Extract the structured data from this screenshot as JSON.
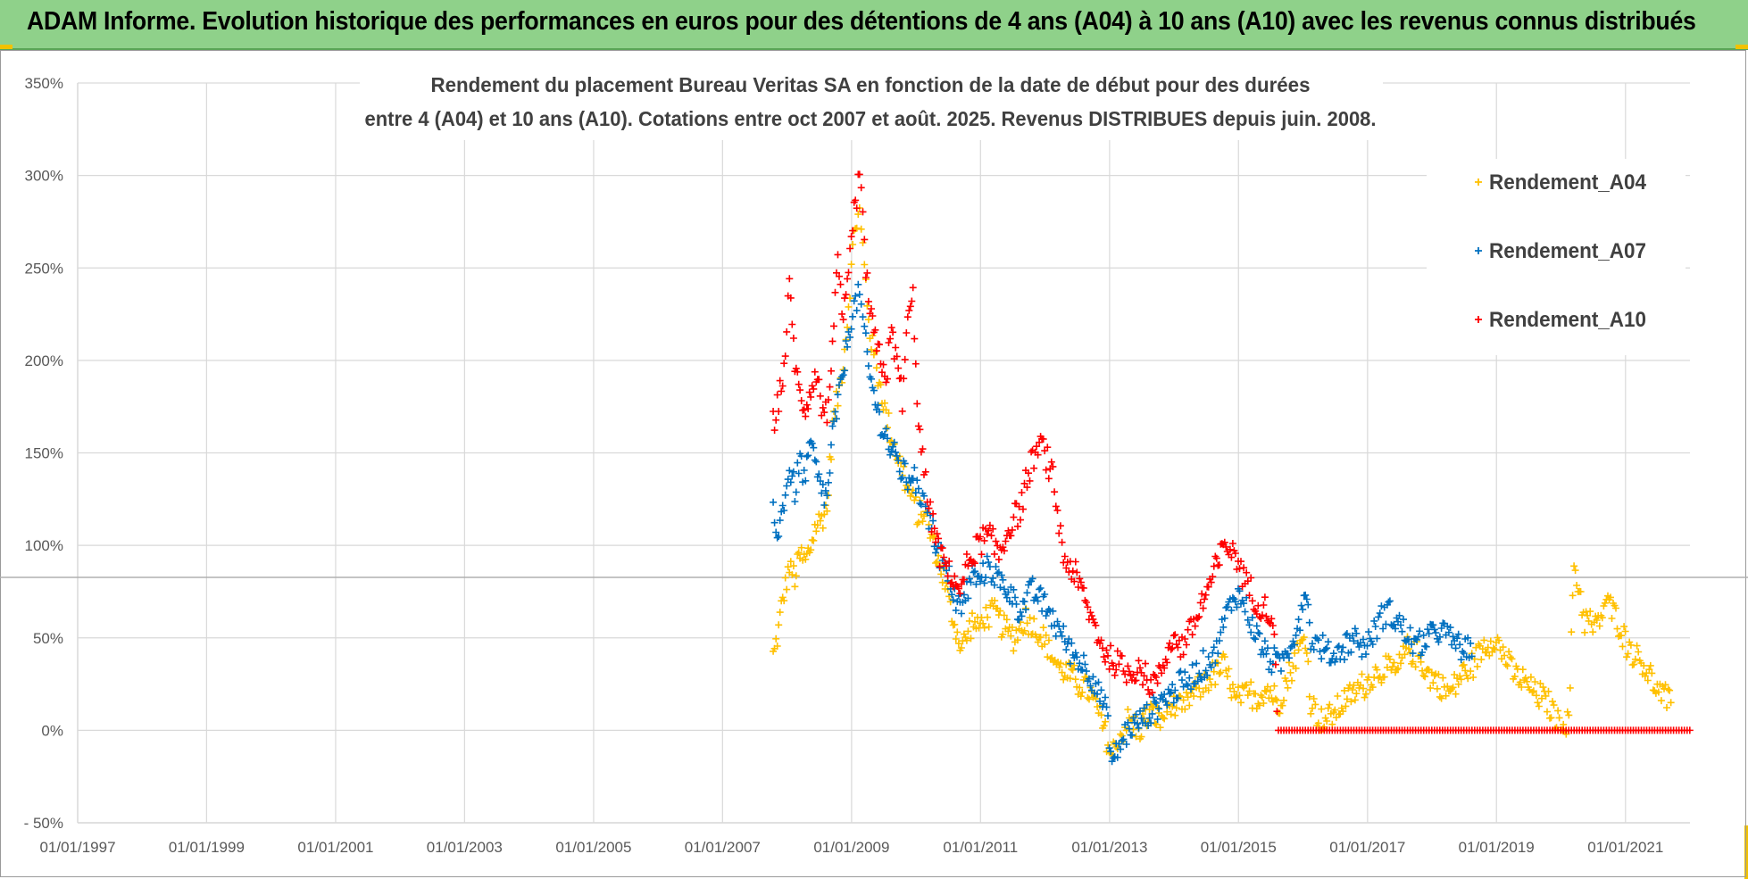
{
  "banner": {
    "title": "ADAM Informe. Evolution historique des performances en euros pour des détentions de 4 ans (A04) à 10 ans (A10) avec les revenus connus distribués"
  },
  "colors": {
    "banner_bg": "#8fd18a",
    "A04": "#ffc000",
    "A07": "#0070c0",
    "A10": "#ff0000",
    "grid": "#d9d9d9"
  },
  "chart_data": {
    "type": "scatter",
    "title_lines": [
      "Rendement du placement Bureau Veritas SA en fonction de la date de début pour des durées",
      "entre 4 (A04) et 10 ans (A10). Cotations entre oct 2007 et août. 2025. Revenus DISTRIBUES depuis juin. 2008."
    ],
    "x_axis": {
      "type": "date",
      "min": "1997-01-01",
      "max": "2022-01-01",
      "tick_labels": [
        "01/01/1997",
        "01/01/1999",
        "01/01/2001",
        "01/01/2003",
        "01/01/2005",
        "01/01/2007",
        "01/01/2009",
        "01/01/2011",
        "01/01/2013",
        "01/01/2015",
        "01/01/2017",
        "01/01/2019",
        "01/01/2021"
      ]
    },
    "y_axis": {
      "unit": "%",
      "min": -50,
      "max": 350,
      "step": 50,
      "tick_labels": [
        "- 50%",
        "0%",
        "50%",
        "100%",
        "150%",
        "200%",
        "250%",
        "300%",
        "350%"
      ]
    },
    "grid": true,
    "legend_position": "top-right",
    "series": [
      {
        "name": "Rendement_A04",
        "marker": "+",
        "points": [
          [
            "2007-10-15",
            40
          ],
          [
            "2007-11-15",
            55
          ],
          [
            "2007-12-15",
            75
          ],
          [
            "2008-01-15",
            88
          ],
          [
            "2008-02-15",
            82
          ],
          [
            "2008-03-15",
            95
          ],
          [
            "2008-04-15",
            90
          ],
          [
            "2008-05-15",
            100
          ],
          [
            "2008-06-15",
            110
          ],
          [
            "2008-07-15",
            115
          ],
          [
            "2008-08-15",
            120
          ],
          [
            "2008-09-15",
            165
          ],
          [
            "2008-10-15",
            180
          ],
          [
            "2008-11-15",
            200
          ],
          [
            "2008-12-15",
            230
          ],
          [
            "2009-01-15",
            270
          ],
          [
            "2009-02-15",
            280
          ],
          [
            "2009-03-15",
            250
          ],
          [
            "2009-04-15",
            215
          ],
          [
            "2009-05-15",
            200
          ],
          [
            "2009-06-15",
            185
          ],
          [
            "2009-07-15",
            170
          ],
          [
            "2009-08-15",
            160
          ],
          [
            "2009-09-15",
            150
          ],
          [
            "2009-10-15",
            140
          ],
          [
            "2009-11-15",
            130
          ],
          [
            "2009-12-15",
            125
          ],
          [
            "2010-01-15",
            115
          ],
          [
            "2010-02-15",
            120
          ],
          [
            "2010-03-15",
            110
          ],
          [
            "2010-04-15",
            100
          ],
          [
            "2010-05-15",
            90
          ],
          [
            "2010-06-15",
            80
          ],
          [
            "2010-07-15",
            65
          ],
          [
            "2010-08-15",
            55
          ],
          [
            "2010-09-15",
            45
          ],
          [
            "2010-10-15",
            50
          ],
          [
            "2010-11-15",
            60
          ],
          [
            "2010-12-15",
            55
          ],
          [
            "2011-01-15",
            60
          ],
          [
            "2011-03-15",
            65
          ],
          [
            "2011-05-15",
            55
          ],
          [
            "2011-07-15",
            50
          ],
          [
            "2011-09-15",
            60
          ],
          [
            "2011-11-15",
            55
          ],
          [
            "2012-01-15",
            45
          ],
          [
            "2012-03-15",
            35
          ],
          [
            "2012-05-15",
            30
          ],
          [
            "2012-07-15",
            25
          ],
          [
            "2012-09-15",
            20
          ],
          [
            "2012-11-15",
            5
          ],
          [
            "2013-01-15",
            -15
          ],
          [
            "2013-02-15",
            -5
          ],
          [
            "2013-04-15",
            5
          ],
          [
            "2013-06-15",
            0
          ],
          [
            "2013-08-15",
            10
          ],
          [
            "2013-10-15",
            5
          ],
          [
            "2013-12-15",
            15
          ],
          [
            "2014-02-15",
            10
          ],
          [
            "2014-04-15",
            20
          ],
          [
            "2014-06-15",
            25
          ],
          [
            "2014-08-15",
            30
          ],
          [
            "2014-10-15",
            35
          ],
          [
            "2014-12-15",
            15
          ],
          [
            "2015-02-15",
            20
          ],
          [
            "2015-04-15",
            18
          ],
          [
            "2015-06-15",
            22
          ],
          [
            "2015-08-15",
            15
          ],
          [
            "2015-10-15",
            30
          ],
          [
            "2015-12-15",
            45
          ],
          [
            "2016-01-15",
            50
          ],
          [
            "2016-02-15",
            15
          ],
          [
            "2016-04-15",
            5
          ],
          [
            "2016-06-15",
            8
          ],
          [
            "2016-08-15",
            15
          ],
          [
            "2016-10-15",
            20
          ],
          [
            "2016-12-15",
            25
          ],
          [
            "2017-02-15",
            30
          ],
          [
            "2017-04-15",
            35
          ],
          [
            "2017-06-15",
            30
          ],
          [
            "2017-08-15",
            45
          ],
          [
            "2017-10-15",
            40
          ],
          [
            "2017-12-15",
            30
          ],
          [
            "2018-02-15",
            25
          ],
          [
            "2018-04-15",
            20
          ],
          [
            "2018-06-15",
            30
          ],
          [
            "2018-08-15",
            35
          ],
          [
            "2018-10-15",
            45
          ],
          [
            "2018-12-15",
            50
          ],
          [
            "2019-02-15",
            40
          ],
          [
            "2019-04-15",
            30
          ],
          [
            "2019-06-15",
            25
          ],
          [
            "2019-08-15",
            20
          ],
          [
            "2019-10-15",
            15
          ],
          [
            "2019-12-15",
            5
          ],
          [
            "2020-02-15",
            5
          ],
          [
            "2020-03-15",
            90
          ],
          [
            "2020-05-15",
            60
          ],
          [
            "2020-07-15",
            55
          ],
          [
            "2020-09-15",
            70
          ],
          [
            "2020-11-15",
            60
          ],
          [
            "2021-01-15",
            45
          ],
          [
            "2021-03-15",
            40
          ],
          [
            "2021-05-15",
            30
          ],
          [
            "2021-07-15",
            20
          ],
          [
            "2021-09-15",
            15
          ]
        ]
      },
      {
        "name": "Rendement_A07",
        "marker": "+",
        "points": [
          [
            "2007-10-15",
            120
          ],
          [
            "2007-11-15",
            105
          ],
          [
            "2007-12-15",
            125
          ],
          [
            "2008-01-15",
            140
          ],
          [
            "2008-02-15",
            130
          ],
          [
            "2008-03-15",
            145
          ],
          [
            "2008-04-15",
            135
          ],
          [
            "2008-05-15",
            155
          ],
          [
            "2008-06-15",
            140
          ],
          [
            "2008-07-15",
            130
          ],
          [
            "2008-08-15",
            125
          ],
          [
            "2008-09-15",
            160
          ],
          [
            "2008-10-15",
            175
          ],
          [
            "2008-11-15",
            195
          ],
          [
            "2008-12-15",
            215
          ],
          [
            "2009-01-15",
            230
          ],
          [
            "2009-02-15",
            235
          ],
          [
            "2009-03-15",
            215
          ],
          [
            "2009-04-15",
            190
          ],
          [
            "2009-05-15",
            180
          ],
          [
            "2009-06-15",
            165
          ],
          [
            "2009-07-15",
            160
          ],
          [
            "2009-08-15",
            150
          ],
          [
            "2009-09-15",
            145
          ],
          [
            "2009-10-15",
            140
          ],
          [
            "2009-11-15",
            135
          ],
          [
            "2009-12-15",
            140
          ],
          [
            "2010-01-15",
            125
          ],
          [
            "2010-02-15",
            130
          ],
          [
            "2010-03-15",
            115
          ],
          [
            "2010-04-15",
            105
          ],
          [
            "2010-05-15",
            95
          ],
          [
            "2010-06-15",
            85
          ],
          [
            "2010-07-15",
            80
          ],
          [
            "2010-08-15",
            70
          ],
          [
            "2010-09-15",
            65
          ],
          [
            "2010-10-15",
            75
          ],
          [
            "2010-11-15",
            85
          ],
          [
            "2010-12-15",
            80
          ],
          [
            "2011-02-15",
            90
          ],
          [
            "2011-04-15",
            80
          ],
          [
            "2011-06-15",
            75
          ],
          [
            "2011-08-15",
            65
          ],
          [
            "2011-10-15",
            75
          ],
          [
            "2011-12-15",
            70
          ],
          [
            "2012-02-15",
            60
          ],
          [
            "2012-04-15",
            50
          ],
          [
            "2012-06-15",
            40
          ],
          [
            "2012-08-15",
            35
          ],
          [
            "2012-10-15",
            25
          ],
          [
            "2012-12-15",
            10
          ],
          [
            "2013-01-15",
            -18
          ],
          [
            "2013-02-15",
            -10
          ],
          [
            "2013-04-15",
            0
          ],
          [
            "2013-06-15",
            5
          ],
          [
            "2013-08-15",
            10
          ],
          [
            "2013-10-15",
            15
          ],
          [
            "2013-12-15",
            20
          ],
          [
            "2014-02-15",
            25
          ],
          [
            "2014-04-15",
            30
          ],
          [
            "2014-06-15",
            35
          ],
          [
            "2014-08-15",
            40
          ],
          [
            "2014-10-15",
            60
          ],
          [
            "2014-12-15",
            75
          ],
          [
            "2015-02-15",
            65
          ],
          [
            "2015-04-15",
            50
          ],
          [
            "2015-06-15",
            40
          ],
          [
            "2015-08-15",
            35
          ],
          [
            "2015-10-15",
            45
          ],
          [
            "2015-12-15",
            60
          ],
          [
            "2016-01-15",
            80
          ],
          [
            "2016-02-15",
            50
          ],
          [
            "2016-04-15",
            45
          ],
          [
            "2016-06-15",
            40
          ],
          [
            "2016-08-15",
            45
          ],
          [
            "2016-10-15",
            50
          ],
          [
            "2016-12-15",
            45
          ],
          [
            "2017-02-15",
            55
          ],
          [
            "2017-04-15",
            65
          ],
          [
            "2017-06-15",
            60
          ],
          [
            "2017-08-15",
            50
          ],
          [
            "2017-10-15",
            45
          ],
          [
            "2017-12-15",
            50
          ],
          [
            "2018-02-15",
            55
          ],
          [
            "2018-04-15",
            50
          ],
          [
            "2018-06-15",
            45
          ],
          [
            "2018-08-15",
            40
          ]
        ]
      },
      {
        "name": "Rendement_A10",
        "marker": "+",
        "points": [
          [
            "2007-10-15",
            165
          ],
          [
            "2007-11-15",
            180
          ],
          [
            "2007-12-15",
            195
          ],
          [
            "2008-01-15",
            240
          ],
          [
            "2008-02-15",
            200
          ],
          [
            "2008-03-15",
            180
          ],
          [
            "2008-04-15",
            175
          ],
          [
            "2008-05-15",
            185
          ],
          [
            "2008-06-15",
            195
          ],
          [
            "2008-07-15",
            175
          ],
          [
            "2008-08-15",
            170
          ],
          [
            "2008-09-15",
            210
          ],
          [
            "2008-10-15",
            250
          ],
          [
            "2008-11-15",
            220
          ],
          [
            "2008-12-15",
            245
          ],
          [
            "2009-01-15",
            280
          ],
          [
            "2009-02-15",
            300
          ],
          [
            "2009-03-15",
            260
          ],
          [
            "2009-04-15",
            225
          ],
          [
            "2009-05-15",
            210
          ],
          [
            "2009-06-15",
            200
          ],
          [
            "2009-07-15",
            190
          ],
          [
            "2009-08-15",
            215
          ],
          [
            "2009-09-15",
            200
          ],
          [
            "2009-10-15",
            180
          ],
          [
            "2009-11-15",
            220
          ],
          [
            "2009-12-15",
            235
          ],
          [
            "2010-01-15",
            165
          ],
          [
            "2010-02-15",
            140
          ],
          [
            "2010-03-15",
            120
          ],
          [
            "2010-04-15",
            110
          ],
          [
            "2010-05-15",
            95
          ],
          [
            "2010-06-15",
            90
          ],
          [
            "2010-07-15",
            85
          ],
          [
            "2010-08-15",
            80
          ],
          [
            "2010-09-15",
            75
          ],
          [
            "2010-10-15",
            90
          ],
          [
            "2010-11-15",
            95
          ],
          [
            "2010-12-15",
            100
          ],
          [
            "2011-02-15",
            105
          ],
          [
            "2011-04-15",
            95
          ],
          [
            "2011-06-15",
            110
          ],
          [
            "2011-08-15",
            120
          ],
          [
            "2011-10-15",
            145
          ],
          [
            "2011-12-15",
            155
          ],
          [
            "2012-02-15",
            135
          ],
          [
            "2012-04-15",
            95
          ],
          [
            "2012-06-15",
            85
          ],
          [
            "2012-08-15",
            70
          ],
          [
            "2012-10-15",
            55
          ],
          [
            "2012-12-15",
            40
          ],
          [
            "2013-02-15",
            35
          ],
          [
            "2013-04-15",
            30
          ],
          [
            "2013-06-15",
            35
          ],
          [
            "2013-08-15",
            25
          ],
          [
            "2013-10-15",
            30
          ],
          [
            "2013-12-15",
            50
          ],
          [
            "2014-02-15",
            45
          ],
          [
            "2014-04-15",
            55
          ],
          [
            "2014-06-15",
            70
          ],
          [
            "2014-08-15",
            85
          ],
          [
            "2014-10-15",
            100
          ],
          [
            "2014-12-15",
            95
          ],
          [
            "2015-02-15",
            80
          ],
          [
            "2015-04-15",
            70
          ],
          [
            "2015-06-15",
            65
          ],
          [
            "2015-07-15",
            60
          ],
          [
            "2015-08-15",
            0
          ],
          [
            "2016-01-15",
            0
          ],
          [
            "2016-06-15",
            0
          ],
          [
            "2017-01-15",
            0
          ],
          [
            "2017-06-15",
            0
          ],
          [
            "2018-01-15",
            0
          ],
          [
            "2018-06-15",
            0
          ],
          [
            "2019-01-15",
            0
          ],
          [
            "2019-06-15",
            0
          ],
          [
            "2020-01-15",
            0
          ],
          [
            "2020-06-15",
            0
          ],
          [
            "2021-01-15",
            0
          ],
          [
            "2021-06-15",
            0
          ],
          [
            "2021-12-31",
            0
          ]
        ]
      }
    ]
  }
}
